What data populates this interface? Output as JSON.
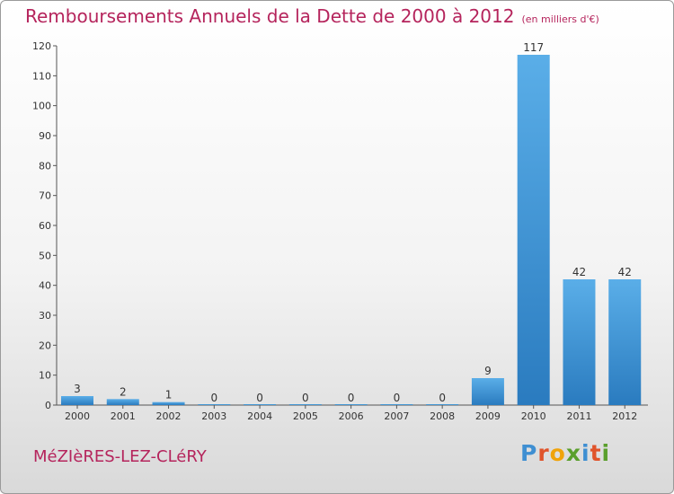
{
  "header": {
    "title": "Remboursements Annuels de la Dette de 2000 à 2012",
    "subtitle": "(en milliers d'€)"
  },
  "footer": {
    "commune": "MéZIèRES-LEZ-CLéRY",
    "logo": "Proxiti"
  },
  "colors": {
    "title": "#b5245c",
    "bar_light": "#5aaee8",
    "bar_dark": "#2a7bbf"
  },
  "chart_data": {
    "type": "bar",
    "title": "Remboursements Annuels de la Dette de 2000 à 2012",
    "subtitle": "(en milliers d'€)",
    "categories": [
      "2000",
      "2001",
      "2002",
      "2003",
      "2004",
      "2005",
      "2006",
      "2007",
      "2008",
      "2009",
      "2010",
      "2011",
      "2012"
    ],
    "values": [
      3,
      2,
      1,
      0,
      0,
      0,
      0,
      0,
      0,
      9,
      117,
      42,
      42
    ],
    "ylim": [
      0,
      120
    ],
    "yticks": [
      0,
      10,
      20,
      30,
      40,
      50,
      60,
      70,
      80,
      90,
      100,
      110,
      120
    ],
    "grid": false,
    "show_data_labels": true
  }
}
